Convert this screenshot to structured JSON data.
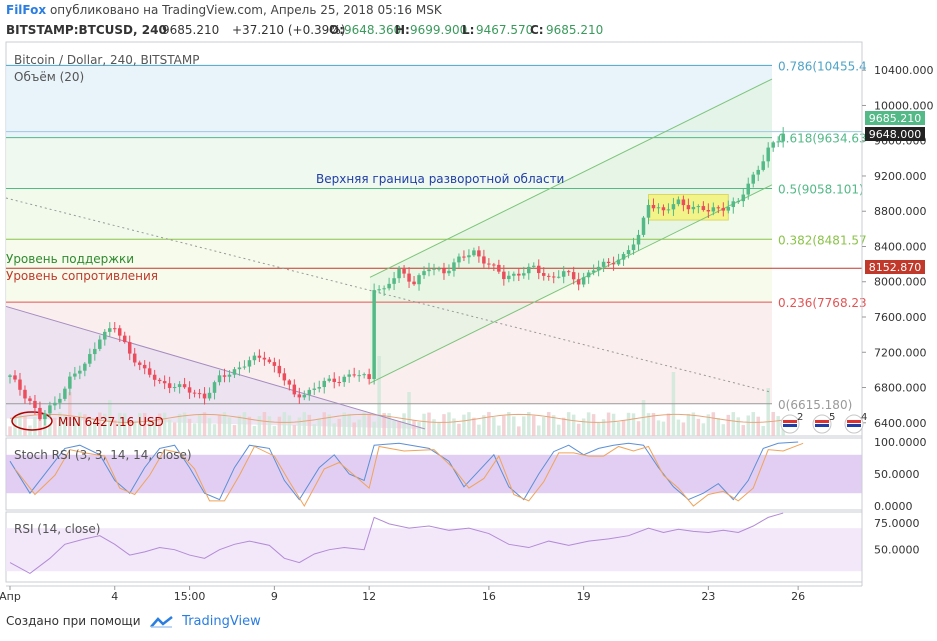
{
  "header": {
    "brand": "FilFox",
    "published": "опубликовано на TradingView.com, Апрель 25, 2018 05:16 MSK"
  },
  "ohlc_line": {
    "symbol": "BITSTAMP:BTCUSD, 240",
    "last": "9685.210",
    "change": "+37.210 (+0.39%)",
    "o_label": "O:",
    "o": "9648.360",
    "h_label": "H:",
    "h": "9699.900",
    "l_label": "L:",
    "l": "9467.570",
    "c_label": "C:",
    "c": "9685.210"
  },
  "legend": {
    "pair": "Bitcoin / Dollar, 240, BITSTAMP",
    "volume": "Объём (20)",
    "stoch": "Stoch RSI (3, 3, 14, 14, close)",
    "rsi": "RSI (14, close)"
  },
  "annotations": {
    "upper_bound": "Верхняя граница разворотной области",
    "support": "Уровень поддержки",
    "resistance": "Уровень сопротивления",
    "min_label": "MIN 6427.16 USD"
  },
  "price_badges": {
    "last": "9685.210",
    "prev": "9648.000",
    "level": "8152.870"
  },
  "event_flags": [
    "2",
    "5",
    "4"
  ],
  "footer": {
    "made_with": "Создано при помощи",
    "brand": "TradingView"
  },
  "colors": {
    "up": "#53b987",
    "down": "#eb4d5c",
    "fib_786": "#4fa3c7",
    "fib_618": "#53b987",
    "fib_382": "#8bc34a",
    "fib_236": "#e25555",
    "channel": "#7cc47a",
    "accent": "#2a7de1"
  },
  "chart_data": {
    "type": "candlestick",
    "price_axis": {
      "ticks": [
        10400,
        10000,
        9600,
        9200,
        8800,
        8400,
        8000,
        7600,
        7200,
        6800,
        6400
      ],
      "tick_labels": [
        "10400.000",
        "10000.000",
        "9600.000",
        "9200.000",
        "8800.000",
        "8400.000",
        "8000.000",
        "7600.000",
        "7200.000",
        "6800.000",
        "6400.000"
      ],
      "range": [
        6250,
        10720
      ]
    },
    "x_axis": {
      "labels": [
        "Апр",
        "4",
        "15:00",
        "9",
        "12",
        "16",
        "19",
        "23",
        "26"
      ],
      "bar_index": [
        0,
        21,
        36,
        53,
        72,
        96,
        115,
        140,
        158
      ],
      "bar_count": 170
    },
    "fib_levels": [
      {
        "label": "0.786(10455.4",
        "value": 10455.4
      },
      {
        "label": "0.618(9634.63",
        "value": 9634.63
      },
      {
        "label": "0.5(9058.101)",
        "value": 9058.101
      },
      {
        "label": "0.382(8481.57",
        "value": 8481.57
      },
      {
        "label": "0.236(7768.23",
        "value": 7768.23
      },
      {
        "label": "0(6615.180)",
        "value": 6615.18
      }
    ],
    "support_level": 8152.87,
    "min_price": 6427.16,
    "path": [
      [
        0,
        6920
      ],
      [
        4,
        6650
      ],
      [
        6,
        6450
      ],
      [
        9,
        6620
      ],
      [
        12,
        6900
      ],
      [
        15,
        7050
      ],
      [
        18,
        7380
      ],
      [
        21,
        7480
      ],
      [
        24,
        7200
      ],
      [
        27,
        6980
      ],
      [
        30,
        6860
      ],
      [
        33,
        6820
      ],
      [
        36,
        6760
      ],
      [
        39,
        6700
      ],
      [
        42,
        6900
      ],
      [
        45,
        7000
      ],
      [
        48,
        7100
      ],
      [
        51,
        7150
      ],
      [
        54,
        6980
      ],
      [
        57,
        6700
      ],
      [
        60,
        6760
      ],
      [
        63,
        6850
      ],
      [
        66,
        6900
      ],
      [
        69,
        6950
      ],
      [
        72,
        6900
      ],
      [
        73,
        7950
      ],
      [
        75,
        7900
      ],
      [
        78,
        8120
      ],
      [
        81,
        8000
      ],
      [
        84,
        8150
      ],
      [
        87,
        8120
      ],
      [
        90,
        8250
      ],
      [
        93,
        8340
      ],
      [
        96,
        8200
      ],
      [
        99,
        8050
      ],
      [
        102,
        8100
      ],
      [
        105,
        8150
      ],
      [
        108,
        8050
      ],
      [
        111,
        8100
      ],
      [
        114,
        8000
      ],
      [
        117,
        8150
      ],
      [
        120,
        8200
      ],
      [
        123,
        8300
      ],
      [
        126,
        8500
      ],
      [
        128,
        8900
      ],
      [
        131,
        8800
      ],
      [
        134,
        8900
      ],
      [
        137,
        8850
      ],
      [
        140,
        8800
      ],
      [
        143,
        8850
      ],
      [
        146,
        8900
      ],
      [
        149,
        9200
      ],
      [
        152,
        9500
      ],
      [
        154,
        9600
      ],
      [
        155,
        9685
      ]
    ],
    "volume_spikes": [
      {
        "bar": 6,
        "value": 0.35
      },
      {
        "bar": 12,
        "value": 0.55
      },
      {
        "bar": 20,
        "value": 0.45
      },
      {
        "bar": 74,
        "value": 1.0
      },
      {
        "bar": 80,
        "value": 0.55
      },
      {
        "bar": 127,
        "value": 0.45
      },
      {
        "bar": 133,
        "value": 0.8
      },
      {
        "bar": 152,
        "value": 0.6
      }
    ],
    "stoch_rsi": {
      "ticks": [
        100,
        50,
        0
      ],
      "tick_labels": [
        "100.0000",
        "50.0000",
        "0.0000"
      ],
      "band": [
        80,
        20
      ],
      "k": [
        [
          0,
          70
        ],
        [
          4,
          20
        ],
        [
          8,
          60
        ],
        [
          11,
          90
        ],
        [
          14,
          95
        ],
        [
          18,
          80
        ],
        [
          21,
          40
        ],
        [
          24,
          20
        ],
        [
          27,
          60
        ],
        [
          30,
          90
        ],
        [
          33,
          95
        ],
        [
          36,
          60
        ],
        [
          39,
          20
        ],
        [
          42,
          10
        ],
        [
          45,
          60
        ],
        [
          48,
          95
        ],
        [
          52,
          90
        ],
        [
          55,
          40
        ],
        [
          58,
          10
        ],
        [
          62,
          60
        ],
        [
          65,
          80
        ],
        [
          68,
          50
        ],
        [
          71,
          40
        ],
        [
          73,
          95
        ],
        [
          78,
          98
        ],
        [
          84,
          90
        ],
        [
          88,
          70
        ],
        [
          91,
          30
        ],
        [
          94,
          55
        ],
        [
          97,
          80
        ],
        [
          100,
          30
        ],
        [
          103,
          10
        ],
        [
          106,
          50
        ],
        [
          109,
          85
        ],
        [
          112,
          95
        ],
        [
          115,
          80
        ],
        [
          118,
          90
        ],
        [
          121,
          95
        ],
        [
          124,
          98
        ],
        [
          127,
          95
        ],
        [
          130,
          60
        ],
        [
          133,
          30
        ],
        [
          136,
          10
        ],
        [
          139,
          20
        ],
        [
          142,
          35
        ],
        [
          145,
          10
        ],
        [
          148,
          40
        ],
        [
          151,
          90
        ],
        [
          154,
          98
        ],
        [
          158,
          100
        ]
      ]
    },
    "rsi": {
      "ticks": [
        75,
        50
      ],
      "tick_labels": [
        "75.0000",
        "50.0000"
      ],
      "band": [
        70,
        30
      ],
      "range": [
        20,
        85
      ],
      "values": [
        [
          0,
          38
        ],
        [
          4,
          28
        ],
        [
          8,
          42
        ],
        [
          11,
          55
        ],
        [
          15,
          60
        ],
        [
          18,
          63
        ],
        [
          21,
          55
        ],
        [
          24,
          45
        ],
        [
          27,
          48
        ],
        [
          30,
          52
        ],
        [
          33,
          50
        ],
        [
          36,
          45
        ],
        [
          39,
          42
        ],
        [
          42,
          50
        ],
        [
          45,
          55
        ],
        [
          48,
          58
        ],
        [
          52,
          54
        ],
        [
          55,
          42
        ],
        [
          58,
          38
        ],
        [
          61,
          46
        ],
        [
          64,
          50
        ],
        [
          67,
          52
        ],
        [
          71,
          50
        ],
        [
          73,
          80
        ],
        [
          76,
          74
        ],
        [
          80,
          70
        ],
        [
          84,
          72
        ],
        [
          88,
          68
        ],
        [
          92,
          70
        ],
        [
          96,
          65
        ],
        [
          100,
          55
        ],
        [
          104,
          52
        ],
        [
          108,
          58
        ],
        [
          112,
          54
        ],
        [
          116,
          58
        ],
        [
          120,
          60
        ],
        [
          124,
          63
        ],
        [
          128,
          70
        ],
        [
          131,
          66
        ],
        [
          134,
          69
        ],
        [
          137,
          67
        ],
        [
          140,
          66
        ],
        [
          143,
          68
        ],
        [
          146,
          66
        ],
        [
          149,
          72
        ],
        [
          152,
          80
        ],
        [
          155,
          84
        ]
      ]
    }
  }
}
